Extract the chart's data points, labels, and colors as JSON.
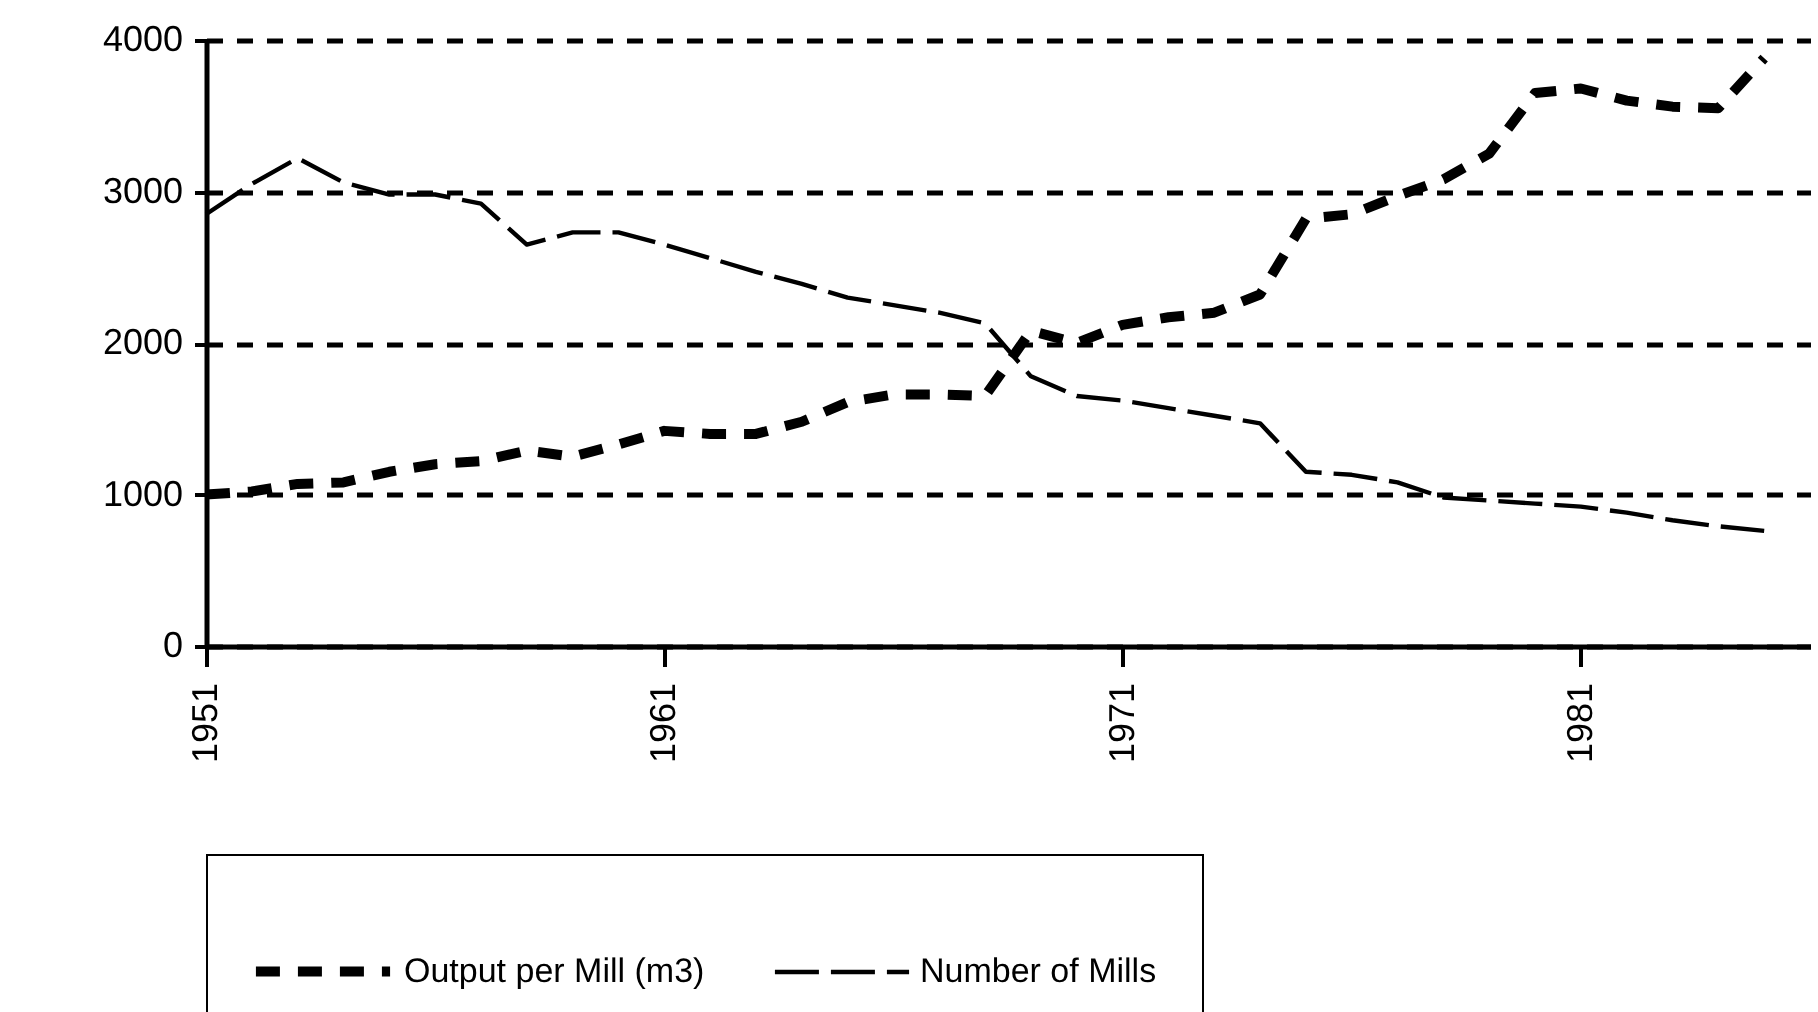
{
  "chart_data": {
    "type": "line",
    "x": [
      1951,
      1952,
      1953,
      1954,
      1955,
      1956,
      1957,
      1958,
      1959,
      1960,
      1961,
      1962,
      1963,
      1964,
      1965,
      1966,
      1967,
      1968,
      1969,
      1970,
      1971,
      1972,
      1973,
      1974,
      1975,
      1976,
      1977,
      1978,
      1979,
      1980,
      1981,
      1982,
      1983,
      1984,
      1985
    ],
    "series": [
      {
        "name": "Output per Mill (m3)",
        "color": "#000000",
        "line_style": "dashed",
        "values": [
          1000,
          1020,
          1070,
          1080,
          1150,
          1200,
          1220,
          1290,
          1250,
          1330,
          1420,
          1400,
          1400,
          1480,
          1610,
          1660,
          1660,
          1650,
          2080,
          2000,
          2120,
          2170,
          2200,
          2320,
          2820,
          2850,
          2970,
          3080,
          3250,
          3650,
          3680,
          3600,
          3560,
          3550,
          3880
        ]
      },
      {
        "name": "Number of Mills",
        "color": "#000000",
        "line_style": "dashed",
        "values": [
          2850,
          3050,
          3220,
          3060,
          2980,
          2980,
          2920,
          2650,
          2730,
          2730,
          2650,
          2560,
          2470,
          2390,
          2300,
          2250,
          2200,
          2130,
          1780,
          1650,
          1620,
          1570,
          1520,
          1470,
          1150,
          1130,
          1080,
          980,
          960,
          940,
          920,
          880,
          830,
          790,
          760
        ]
      }
    ],
    "xlim": [
      1951,
      1986
    ],
    "xticks": [
      1951,
      1961,
      1971,
      1981
    ],
    "ylim": [
      0,
      4000
    ],
    "yticks": [
      0,
      1000,
      2000,
      3000,
      4000
    ],
    "grid": "y",
    "legend": "bottom",
    "marker": "none"
  }
}
